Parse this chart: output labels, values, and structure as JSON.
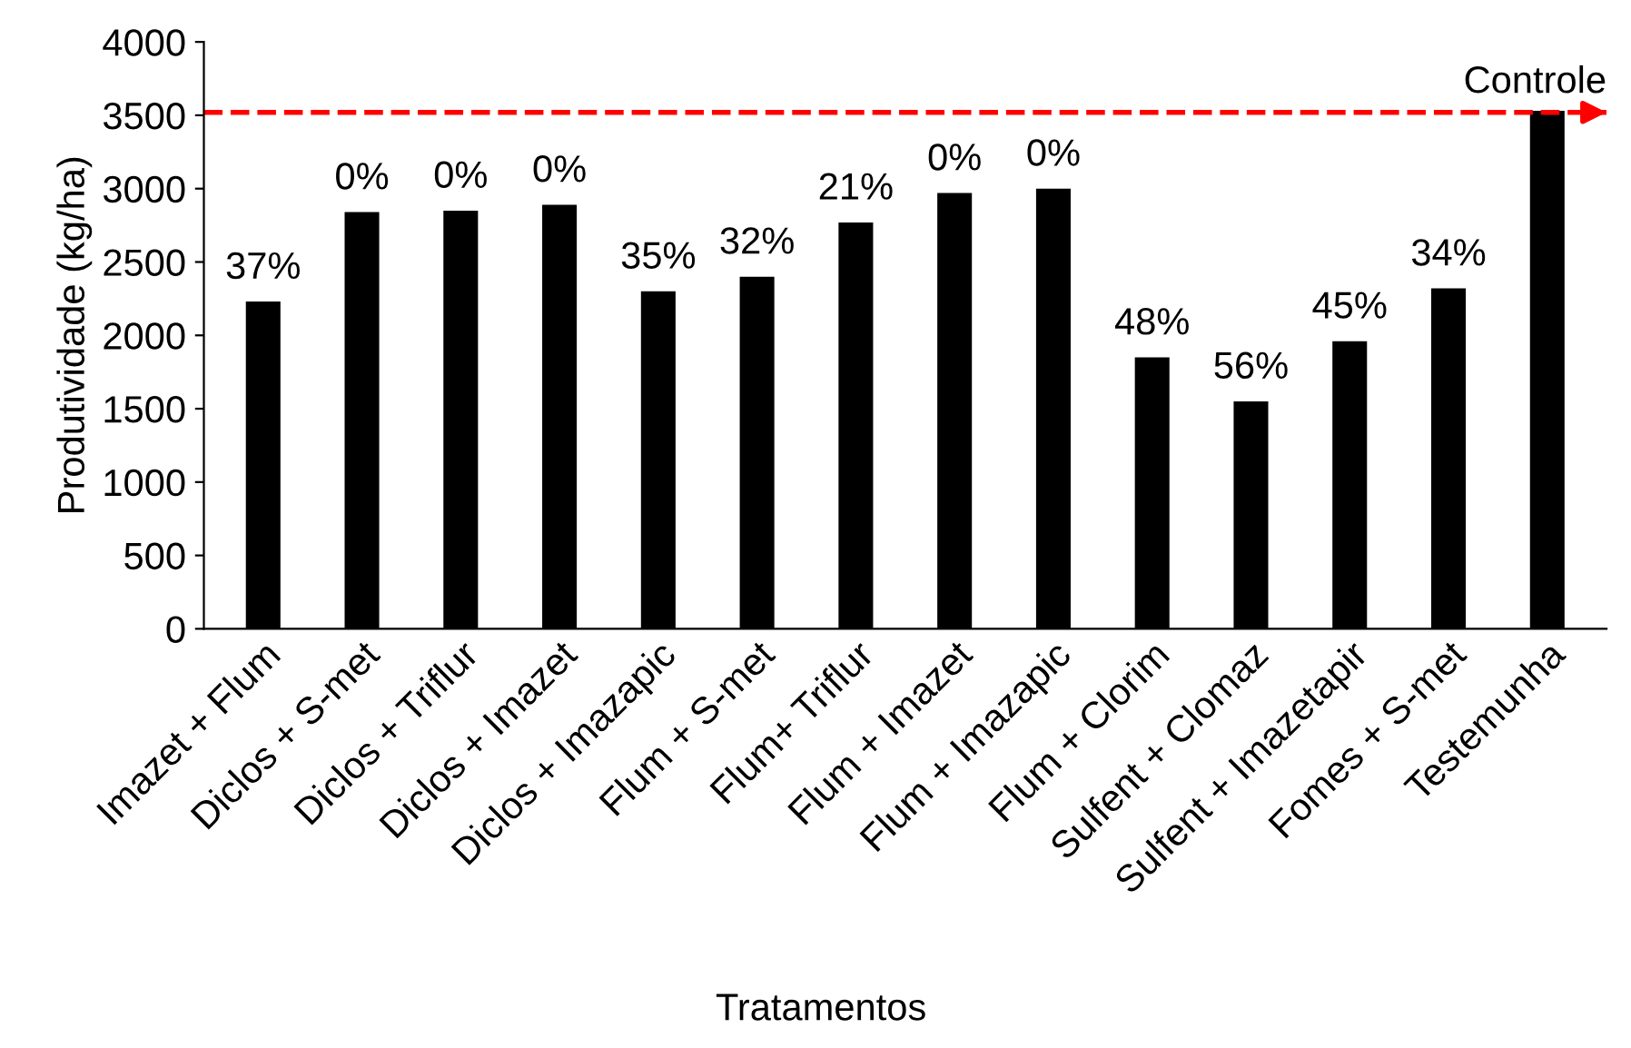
{
  "chart_data": {
    "type": "bar",
    "xlabel": "Tratamentos",
    "ylabel": "Produtividade (kg/ha)",
    "categories": [
      "Imazet + Flum",
      "Diclos + S-met",
      "Diclos + Triflur",
      "Diclos + Imazet",
      "Diclos + Imazapic",
      "Flum + S-met",
      "Flum+ Triflur",
      "Flum + Imazet",
      "Flum + Imazapic",
      "Flum + Clorim",
      "Sulfent + Clomaz",
      "Sulfent + Imazetapir",
      "Fomes + S-met",
      "Testemunha"
    ],
    "values": [
      2230,
      2840,
      2850,
      2890,
      2300,
      2400,
      2770,
      2970,
      3000,
      1850,
      1550,
      1960,
      2320,
      3530
    ],
    "annotations": [
      {
        "text": "37%",
        "x": "Imazet + Flum",
        "y": 2230
      },
      {
        "text": "0%",
        "x": "Diclos + S-met",
        "y": 2840
      },
      {
        "text": "0%",
        "x": "Diclos + Triflur",
        "y": 2850
      },
      {
        "text": "0%",
        "x": "Diclos + Imazet",
        "y": 2890
      },
      {
        "text": "35%",
        "x": "Diclos + Imazapic",
        "y": 2300
      },
      {
        "text": "32%",
        "x": "Flum + S-met",
        "y": 2400
      },
      {
        "text": "21%",
        "x": "Flum+ Triflur",
        "y": 2770
      },
      {
        "text": "0%",
        "x": "Flum + Imazet",
        "y": 2970
      },
      {
        "text": "0%",
        "x": "Flum + Imazapic",
        "y": 3000
      },
      {
        "text": "48%",
        "x": "Flum + Clorim",
        "y": 1850
      },
      {
        "text": "56%",
        "x": "Sulfent + Clomaz",
        "y": 1550
      },
      {
        "text": "45%",
        "x": "Sulfent + Imazetapir",
        "y": 1960
      },
      {
        "text": "34%",
        "x": "Fomes + S-met",
        "y": 2320
      }
    ],
    "color": "#000000",
    "ylim": [
      0,
      4000
    ],
    "yticks": [
      0,
      500,
      1000,
      1500,
      2000,
      2500,
      3000,
      3500,
      4000
    ],
    "ref_lines": [
      {
        "axis": "y",
        "value": 3520,
        "label": "Controle",
        "color": "#ff0000",
        "line_style": "dashed"
      }
    ]
  }
}
